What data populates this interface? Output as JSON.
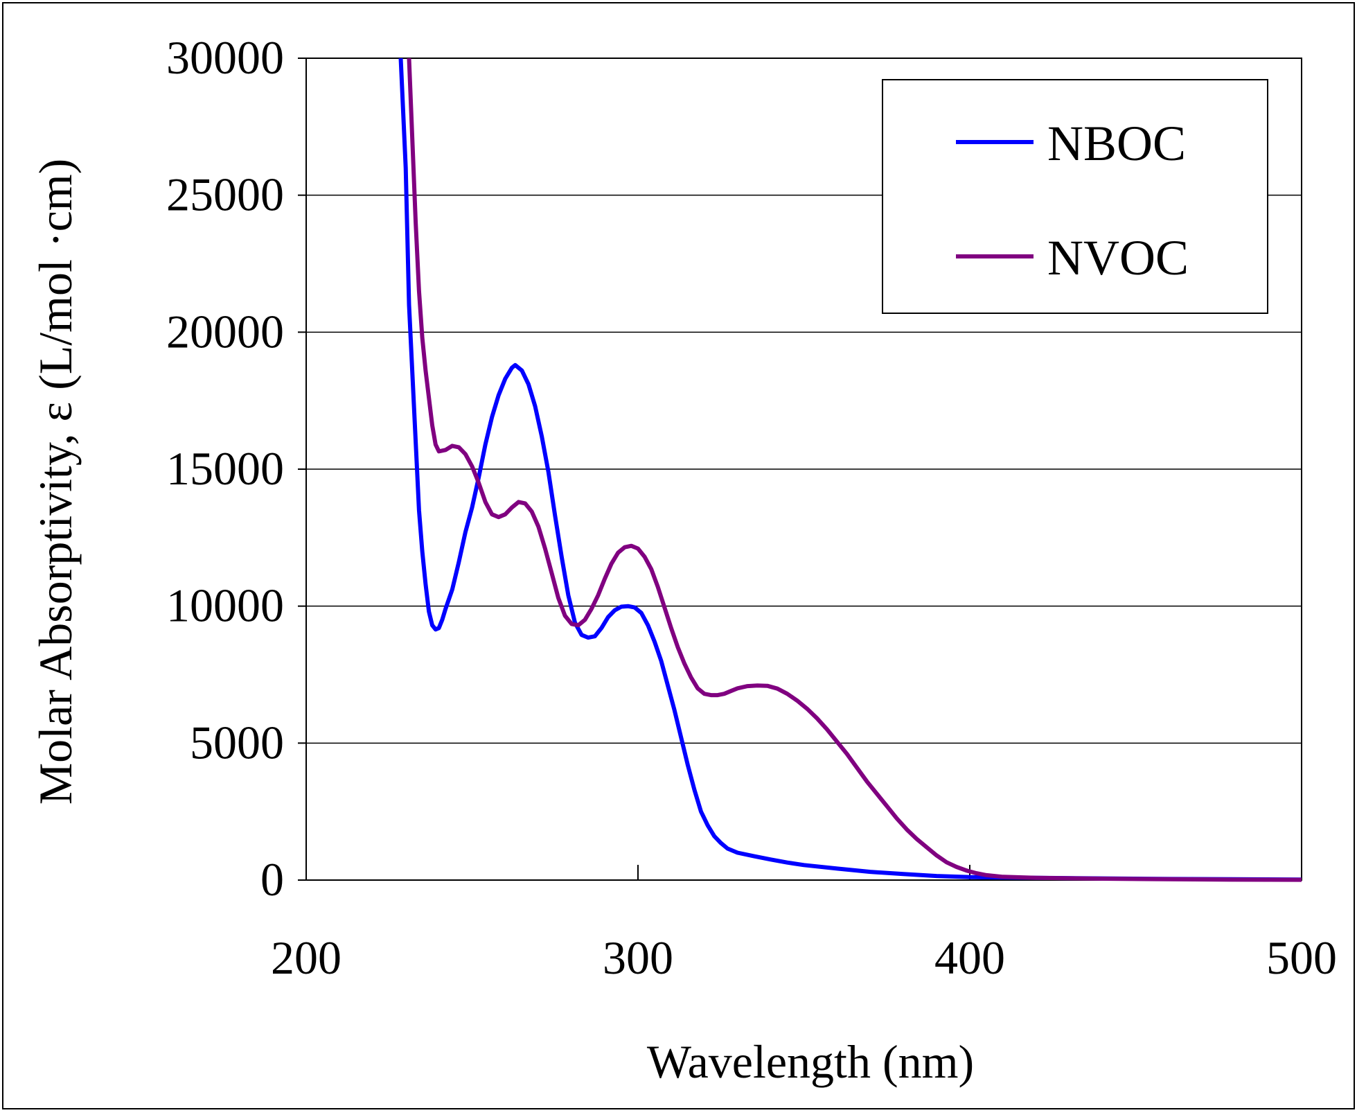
{
  "chart_data": {
    "type": "line",
    "title": "",
    "xlabel": "Wavelength (nm)",
    "ylabel": "Molar Absorptivity, ε (L/mol ·cm)",
    "xlim": [
      200,
      500
    ],
    "ylim": [
      0,
      30000
    ],
    "x_ticks": [
      "200",
      "300",
      "400",
      "500"
    ],
    "y_ticks": [
      "0",
      "5000",
      "10000",
      "15000",
      "20000",
      "25000",
      "30000"
    ],
    "grid": "horizontal",
    "legend_position": "top-right",
    "series": [
      {
        "name": "NBOC",
        "color": "#0000ff",
        "points": [
          [
            228.5,
            30000
          ],
          [
            230,
            26000
          ],
          [
            231,
            21000
          ],
          [
            232,
            18500
          ],
          [
            233,
            16000
          ],
          [
            234,
            13500
          ],
          [
            235,
            12000
          ],
          [
            236,
            10800
          ],
          [
            237,
            9800
          ],
          [
            238,
            9300
          ],
          [
            239,
            9150
          ],
          [
            240,
            9200
          ],
          [
            241,
            9500
          ],
          [
            242,
            9900
          ],
          [
            244,
            10600
          ],
          [
            246,
            11600
          ],
          [
            248,
            12700
          ],
          [
            250,
            13600
          ],
          [
            252,
            14700
          ],
          [
            254,
            15900
          ],
          [
            256,
            16900
          ],
          [
            258,
            17700
          ],
          [
            260,
            18300
          ],
          [
            262,
            18700
          ],
          [
            263,
            18800
          ],
          [
            265,
            18600
          ],
          [
            267,
            18100
          ],
          [
            269,
            17300
          ],
          [
            271,
            16200
          ],
          [
            273,
            14900
          ],
          [
            275,
            13300
          ],
          [
            277,
            11800
          ],
          [
            279,
            10400
          ],
          [
            281,
            9400
          ],
          [
            283,
            8950
          ],
          [
            285,
            8850
          ],
          [
            287,
            8900
          ],
          [
            289,
            9200
          ],
          [
            291,
            9600
          ],
          [
            293,
            9850
          ],
          [
            295,
            9980
          ],
          [
            297,
            10000
          ],
          [
            299,
            9950
          ],
          [
            301,
            9750
          ],
          [
            303,
            9300
          ],
          [
            305,
            8700
          ],
          [
            307,
            8000
          ],
          [
            309,
            7100
          ],
          [
            311,
            6200
          ],
          [
            313,
            5200
          ],
          [
            315,
            4200
          ],
          [
            317,
            3300
          ],
          [
            319,
            2500
          ],
          [
            321,
            2000
          ],
          [
            323,
            1600
          ],
          [
            325,
            1350
          ],
          [
            327,
            1150
          ],
          [
            330,
            1000
          ],
          [
            335,
            870
          ],
          [
            340,
            750
          ],
          [
            345,
            640
          ],
          [
            350,
            550
          ],
          [
            360,
            420
          ],
          [
            370,
            300
          ],
          [
            380,
            220
          ],
          [
            390,
            150
          ],
          [
            400,
            110
          ],
          [
            420,
            80
          ],
          [
            440,
            60
          ],
          [
            460,
            40
          ],
          [
            500,
            20
          ]
        ]
      },
      {
        "name": "NVOC",
        "color": "#800080",
        "points": [
          [
            231,
            30000
          ],
          [
            232,
            27000
          ],
          [
            233,
            24000
          ],
          [
            234,
            21500
          ],
          [
            235,
            19800
          ],
          [
            236,
            18600
          ],
          [
            237,
            17600
          ],
          [
            238,
            16600
          ],
          [
            239,
            15900
          ],
          [
            240,
            15650
          ],
          [
            242,
            15700
          ],
          [
            244,
            15850
          ],
          [
            246,
            15800
          ],
          [
            248,
            15550
          ],
          [
            250,
            15100
          ],
          [
            252,
            14500
          ],
          [
            254,
            13800
          ],
          [
            256,
            13350
          ],
          [
            258,
            13250
          ],
          [
            260,
            13350
          ],
          [
            262,
            13600
          ],
          [
            264,
            13800
          ],
          [
            266,
            13750
          ],
          [
            268,
            13450
          ],
          [
            270,
            12900
          ],
          [
            272,
            12100
          ],
          [
            274,
            11200
          ],
          [
            276,
            10300
          ],
          [
            278,
            9650
          ],
          [
            280,
            9350
          ],
          [
            282,
            9300
          ],
          [
            284,
            9500
          ],
          [
            286,
            9900
          ],
          [
            288,
            10400
          ],
          [
            290,
            11000
          ],
          [
            292,
            11550
          ],
          [
            294,
            11950
          ],
          [
            296,
            12150
          ],
          [
            298,
            12200
          ],
          [
            300,
            12100
          ],
          [
            302,
            11800
          ],
          [
            304,
            11350
          ],
          [
            306,
            10700
          ],
          [
            308,
            9950
          ],
          [
            310,
            9200
          ],
          [
            312,
            8500
          ],
          [
            314,
            7900
          ],
          [
            316,
            7400
          ],
          [
            318,
            7000
          ],
          [
            320,
            6800
          ],
          [
            322,
            6750
          ],
          [
            324,
            6750
          ],
          [
            326,
            6800
          ],
          [
            328,
            6900
          ],
          [
            330,
            7000
          ],
          [
            333,
            7080
          ],
          [
            336,
            7100
          ],
          [
            339,
            7090
          ],
          [
            342,
            6990
          ],
          [
            345,
            6800
          ],
          [
            348,
            6550
          ],
          [
            351,
            6250
          ],
          [
            354,
            5900
          ],
          [
            357,
            5500
          ],
          [
            360,
            5050
          ],
          [
            363,
            4600
          ],
          [
            366,
            4100
          ],
          [
            369,
            3600
          ],
          [
            372,
            3150
          ],
          [
            375,
            2700
          ],
          [
            378,
            2250
          ],
          [
            381,
            1850
          ],
          [
            384,
            1500
          ],
          [
            387,
            1200
          ],
          [
            390,
            900
          ],
          [
            393,
            650
          ],
          [
            396,
            480
          ],
          [
            399,
            350
          ],
          [
            402,
            250
          ],
          [
            405,
            180
          ],
          [
            410,
            120
          ],
          [
            420,
            80
          ],
          [
            440,
            50
          ],
          [
            460,
            30
          ],
          [
            480,
            15
          ],
          [
            500,
            10
          ]
        ]
      }
    ]
  }
}
